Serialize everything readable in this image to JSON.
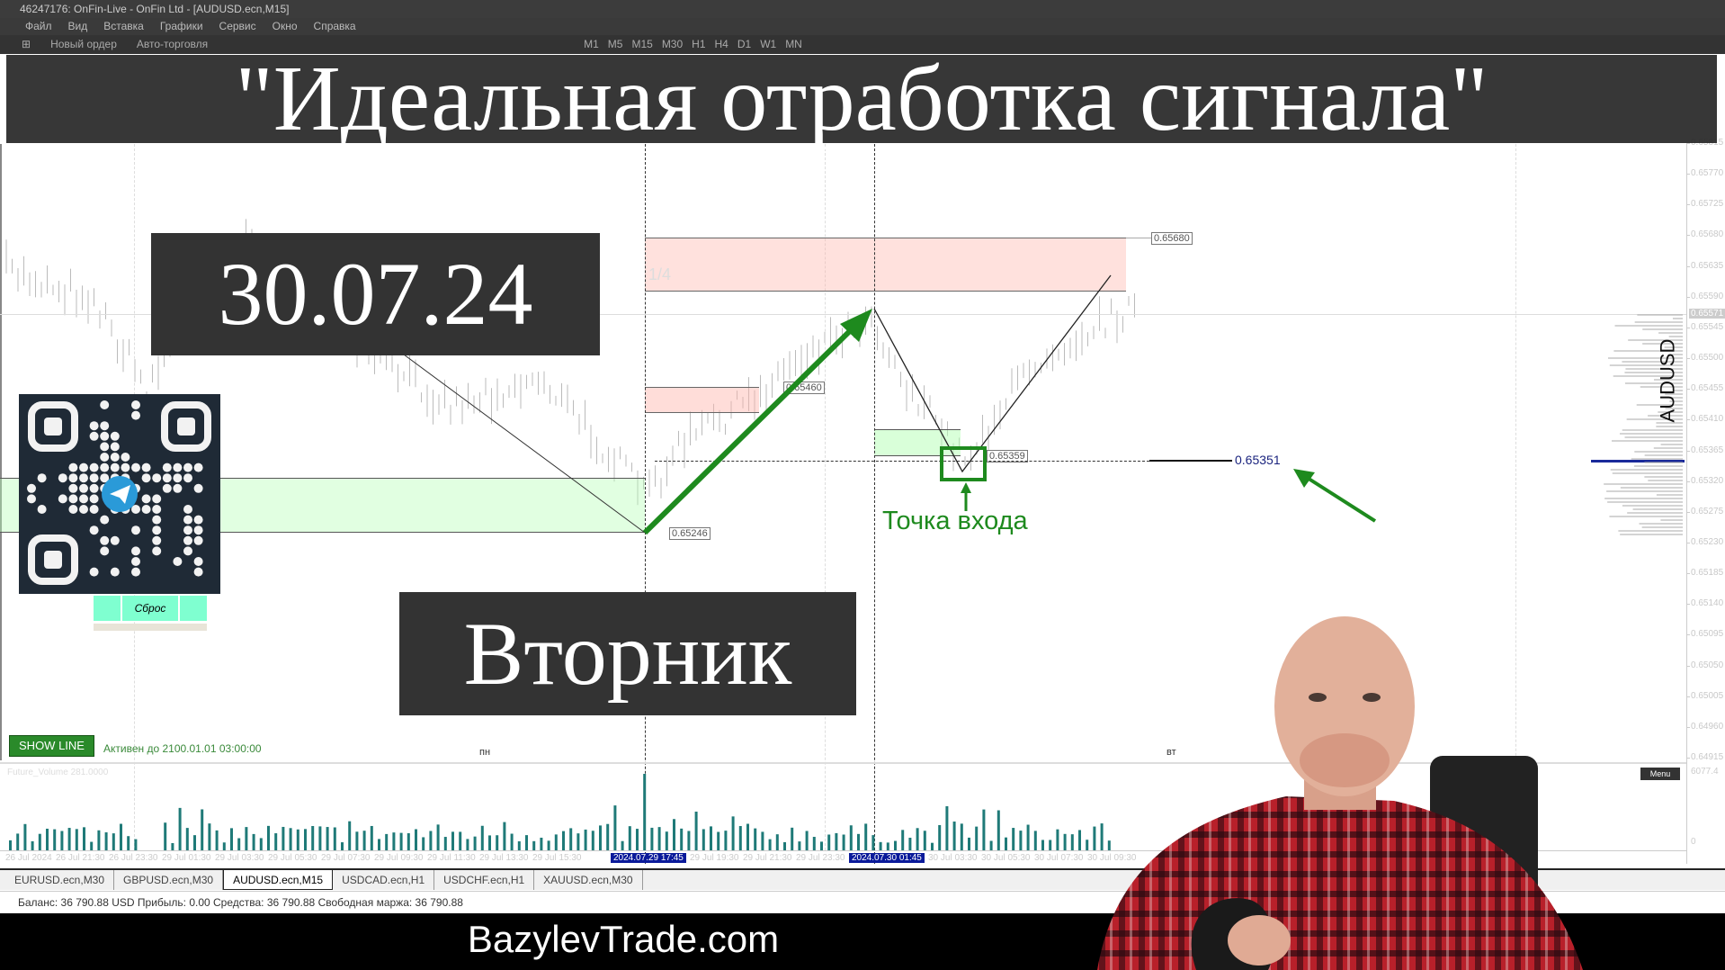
{
  "window": {
    "title": "46247176: OnFin-Live - OnFin Ltd - [AUDUSD.ecn,M15]"
  },
  "menu": [
    "Файл",
    "Вид",
    "Вставка",
    "Графики",
    "Сервис",
    "Окно",
    "Справка"
  ],
  "toolbar": {
    "new_order": "Новый ордер",
    "auto_trading": "Авто-торговля",
    "timeframes": [
      "M1",
      "M5",
      "M15",
      "M30",
      "H1",
      "H4",
      "D1",
      "W1",
      "MN"
    ]
  },
  "overlay": {
    "title": "\"Идеальная отработка сигнала\"",
    "date": "30.07.24",
    "weekday": "Вторник",
    "site": "BazylevTrade.com",
    "entry_label": "Точка входа"
  },
  "chart": {
    "symbol": "AUDUSD",
    "zone_label": "1/4",
    "tags": {
      "top": "0.65680",
      "mid": "0.65460",
      "entry": "0.65359",
      "low": "0.65246",
      "level": "0.65351"
    },
    "current_price": "0.65571",
    "price_labels": [
      "0.65815",
      "0.65770",
      "0.65725",
      "0.65680",
      "0.65635",
      "0.65590",
      "0.65545",
      "0.65500",
      "0.65455",
      "0.65410",
      "0.65365",
      "0.65320",
      "0.65275",
      "0.65230",
      "0.65185",
      "0.65140",
      "0.65095",
      "0.65050",
      "0.65005",
      "0.64960",
      "0.64915"
    ],
    "day_labels": {
      "mon": "пн",
      "tue": "вт"
    },
    "show_line": "SHOW LINE",
    "active_until": "Активен до 2100.01.01 03:00:00",
    "reset": "Сброс",
    "accent": "#1e8a1e"
  },
  "volume": {
    "label": "Future_Volume 281.0000",
    "max": "6077.4",
    "min": "0",
    "menu": "Menu"
  },
  "time_labels": [
    "26 Jul 2024",
    "26 Jul 21:30",
    "26 Jul 23:30",
    "29 Jul 01:30",
    "29 Jul 03:30",
    "29 Jul 05:30",
    "29 Jul 07:30",
    "29 Jul 09:30",
    "29 Jul 11:30",
    "29 Jul 13:30",
    "29 Jul 15:30",
    "2024.07.29 17:45",
    "29 Jul 19:30",
    "29 Jul 21:30",
    "29 Jul 23:30",
    "2024.07.30 01:45",
    "30 Jul 03:30",
    "30 Jul 05:30",
    "30 Jul 07:30",
    "30 Jul 09:30"
  ],
  "tabs": [
    {
      "label": "EURUSD.ecn,M30"
    },
    {
      "label": "GBPUSD.ecn,M30"
    },
    {
      "label": "AUDUSD.ecn,M15",
      "active": true
    },
    {
      "label": "USDCAD.ecn,H1"
    },
    {
      "label": "USDCHF.ecn,H1"
    },
    {
      "label": "XAUUSD.ecn,M30"
    }
  ],
  "status": "Баланс: 36 790.88 USD  Прибыль: 0.00  Средства: 36 790.88  Свободная маржа: 36 790.88"
}
